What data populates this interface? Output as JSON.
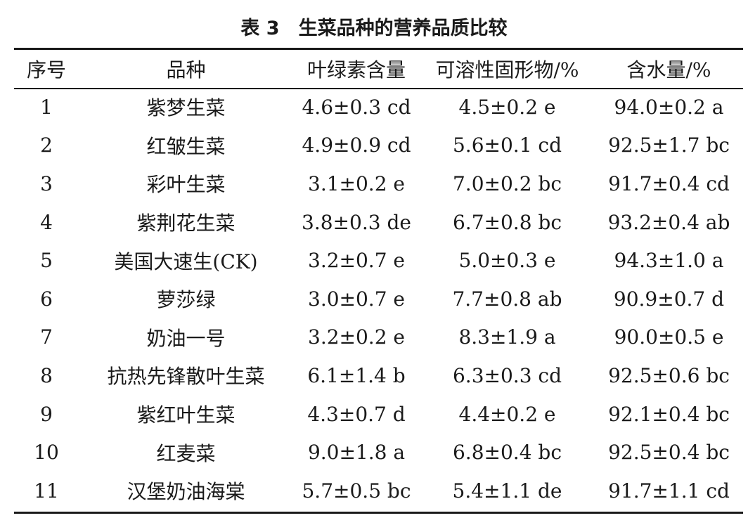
{
  "caption": "表 3　生菜品种的营养品质比较",
  "headers": {
    "no": "序号",
    "variety": "品种",
    "chlorophyll": "叶绿素含量",
    "tss": "可溶性固形物/%",
    "water": "含水量/%"
  },
  "rows": [
    {
      "no": "1",
      "variety": "紫梦生菜",
      "chlorophyll": "4.6±0.3 cd",
      "tss": "4.5±0.2 e",
      "water": "94.0±0.2 a"
    },
    {
      "no": "2",
      "variety": "红皱生菜",
      "chlorophyll": "4.9±0.9 cd",
      "tss": "5.6±0.1 cd",
      "water": "92.5±1.7 bc"
    },
    {
      "no": "3",
      "variety": "彩叶生菜",
      "chlorophyll": "3.1±0.2 e",
      "tss": "7.0±0.2 bc",
      "water": "91.7±0.4 cd"
    },
    {
      "no": "4",
      "variety": "紫荆花生菜",
      "chlorophyll": "3.8±0.3 de",
      "tss": "6.7±0.8 bc",
      "water": "93.2±0.4 ab"
    },
    {
      "no": "5",
      "variety": "美国大速生(CK)",
      "chlorophyll": "3.2±0.7 e",
      "tss": "5.0±0.3 e",
      "water": "94.3±1.0 a"
    },
    {
      "no": "6",
      "variety": "萝莎绿",
      "chlorophyll": "3.0±0.7 e",
      "tss": "7.7±0.8 ab",
      "water": "90.9±0.7 d"
    },
    {
      "no": "7",
      "variety": "奶油一号",
      "chlorophyll": "3.2±0.2 e",
      "tss": "8.3±1.9 a",
      "water": "90.0±0.5 e"
    },
    {
      "no": "8",
      "variety": "抗热先锋散叶生菜",
      "chlorophyll": "6.1±1.4 b",
      "tss": "6.3±0.3 cd",
      "water": "92.5±0.6 bc"
    },
    {
      "no": "9",
      "variety": "紫红叶生菜",
      "chlorophyll": "4.3±0.7 d",
      "tss": "4.4±0.2 e",
      "water": "92.1±0.4 bc"
    },
    {
      "no": "10",
      "variety": "红麦菜",
      "chlorophyll": "9.0±1.8 a",
      "tss": "6.8±0.4 bc",
      "water": "92.5±0.4 bc"
    },
    {
      "no": "11",
      "variety": "汉堡奶油海棠",
      "chlorophyll": "5.7±0.5 bc",
      "tss": "5.4±1.1 de",
      "water": "91.7±1.1 cd"
    }
  ]
}
